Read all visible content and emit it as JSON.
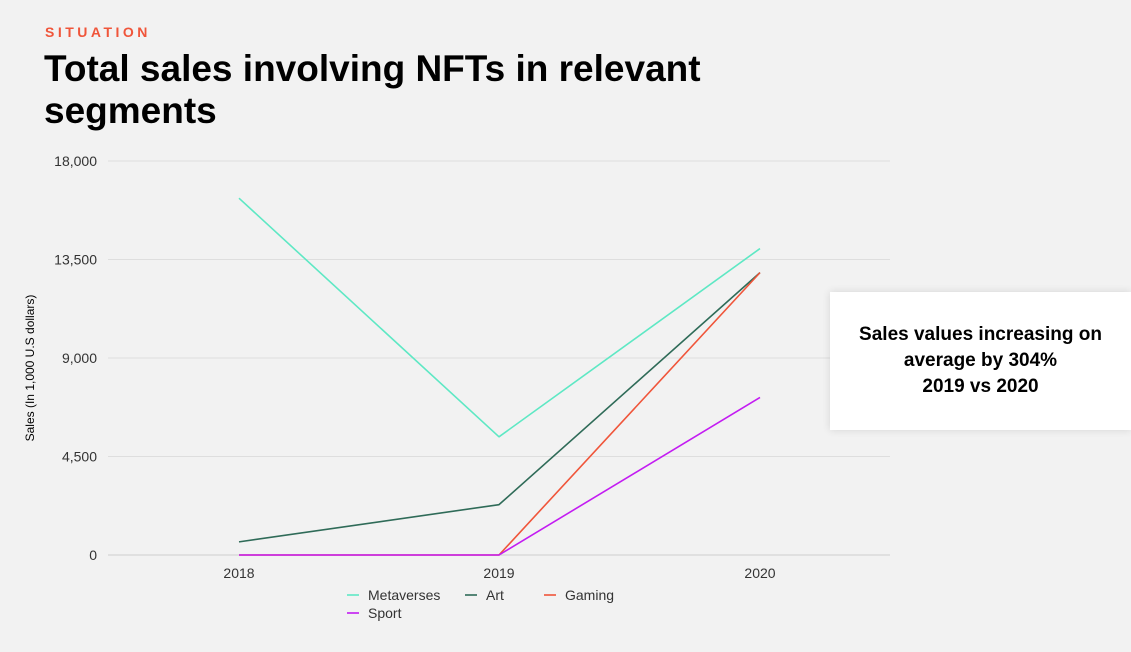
{
  "header": {
    "eyebrow": "SITUATION",
    "title": "Total sales involving NFTs in relevant segments"
  },
  "callout": {
    "text": "Sales values increasing on\naverage by 304%\n2019 vs 2020"
  },
  "chart_data": {
    "type": "line",
    "title": "Total sales involving NFTs in relevant segments",
    "xlabel": "",
    "ylabel": "Sales (In 1,000 U.S dollars)",
    "categories": [
      "2018",
      "2019",
      "2020"
    ],
    "ylim": [
      0,
      18000
    ],
    "yticks": [
      0,
      4500,
      9000,
      13500,
      18000
    ],
    "ytick_labels": [
      "0",
      "4,500",
      "9,000",
      "13,500",
      "18,000"
    ],
    "grid": true,
    "legend_position": "bottom",
    "series": [
      {
        "name": "Metaverses",
        "color": "#5ee8c4",
        "values": [
          16300,
          5400,
          14000
        ]
      },
      {
        "name": "Art",
        "color": "#2f6b58",
        "values": [
          600,
          2300,
          12900
        ]
      },
      {
        "name": "Gaming",
        "color": "#f0553a",
        "values": [
          0,
          0,
          12900
        ]
      },
      {
        "name": "Sport",
        "color": "#c31cf2",
        "values": [
          0,
          0,
          7200
        ]
      }
    ]
  }
}
